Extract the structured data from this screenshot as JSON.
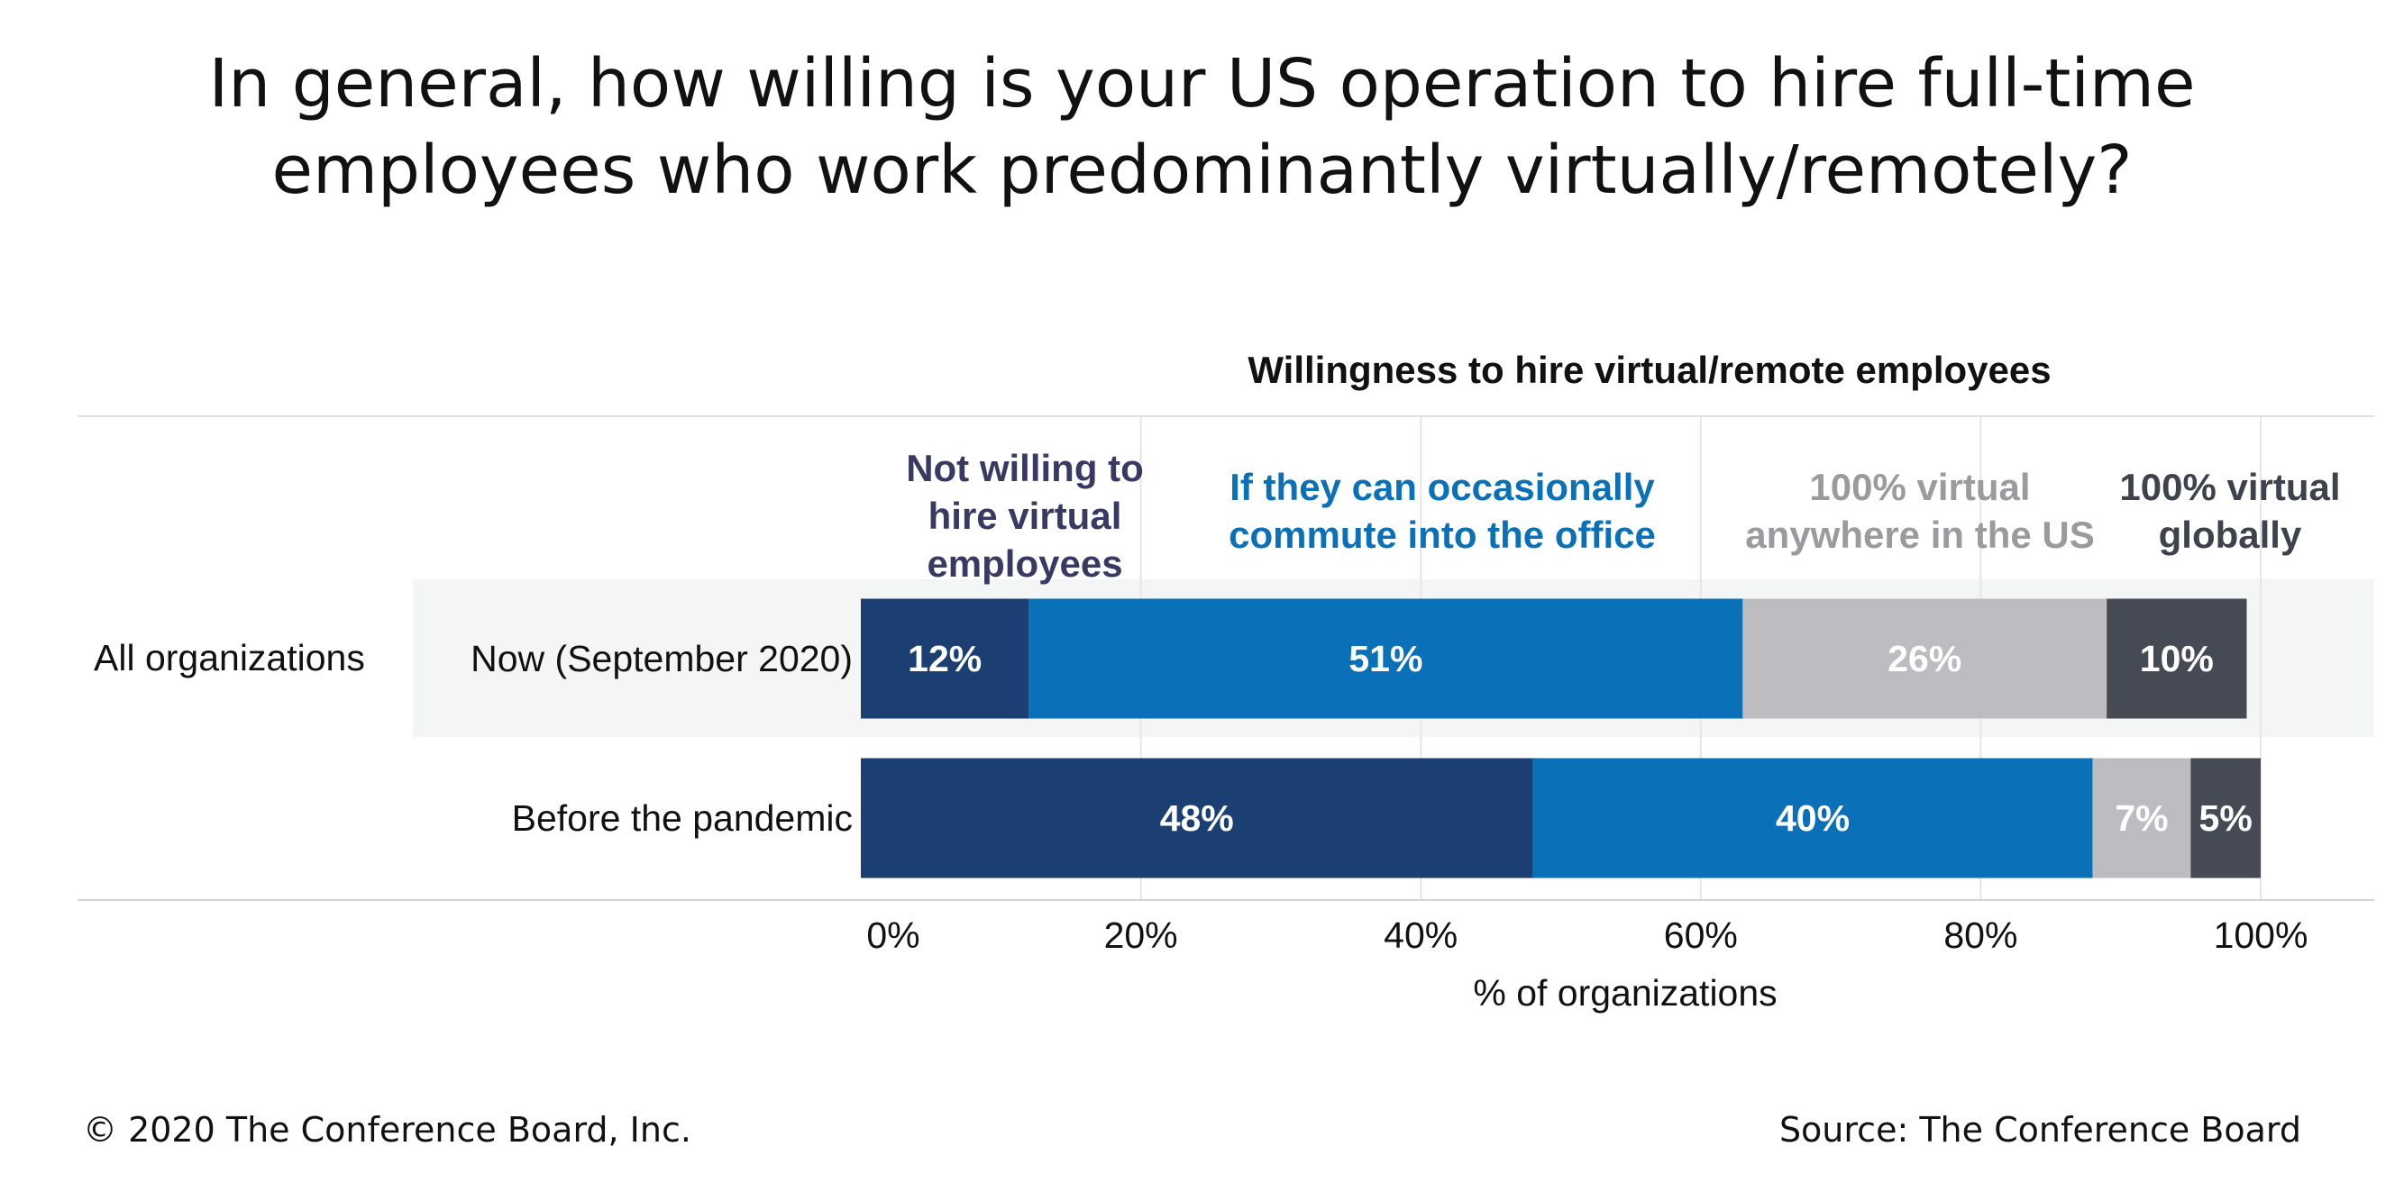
{
  "page": {
    "title_lines": [
      "In general, how willing is your US operation to hire full-time",
      "employees who work predominantly virtually/remotely?"
    ],
    "copyright": "© 2020 The Conference Board, Inc.",
    "source": "Source: The Conference Board"
  },
  "chart_data": {
    "type": "bar",
    "orientation": "horizontal",
    "stacked": true,
    "title": "Willingness to hire virtual/remote employees",
    "xlabel": "% of organizations",
    "ylabel": "",
    "xlim": [
      0,
      100
    ],
    "x_ticks": [
      "0%",
      "20%",
      "40%",
      "60%",
      "80%",
      "100%"
    ],
    "x_tick_values": [
      0,
      20,
      40,
      60,
      80,
      100
    ],
    "grid": "vertical",
    "group_label": "All organizations",
    "categories": [
      "Now (September 2020)",
      "Before the pandemic"
    ],
    "series": [
      {
        "name_lines": [
          "Not willing to",
          "hire virtual",
          "employees"
        ],
        "color": "#1b3f73",
        "values": [
          12,
          48
        ],
        "labels": [
          "12%",
          "48%"
        ]
      },
      {
        "name_lines": [
          "If they can occasionally",
          "commute into the office"
        ],
        "color": "#0a71b8",
        "values": [
          51,
          40
        ],
        "labels": [
          "51%",
          "40%"
        ]
      },
      {
        "name_lines": [
          "100% virtual",
          "anywhere in the US"
        ],
        "color": "#bdbcc1",
        "values": [
          26,
          7
        ],
        "labels": [
          "26%",
          "7%"
        ]
      },
      {
        "name_lines": [
          "100% virtual",
          "globally"
        ],
        "color": "#454a55",
        "values": [
          10,
          5
        ],
        "labels": [
          "10%",
          "5%"
        ]
      }
    ],
    "legend_colors": [
      "#383a63",
      "#0a71b8",
      "#9b9a9f",
      "#3d424c"
    ],
    "highlight_band_color": "#f4f6f5",
    "label_color": "#ffffff"
  }
}
